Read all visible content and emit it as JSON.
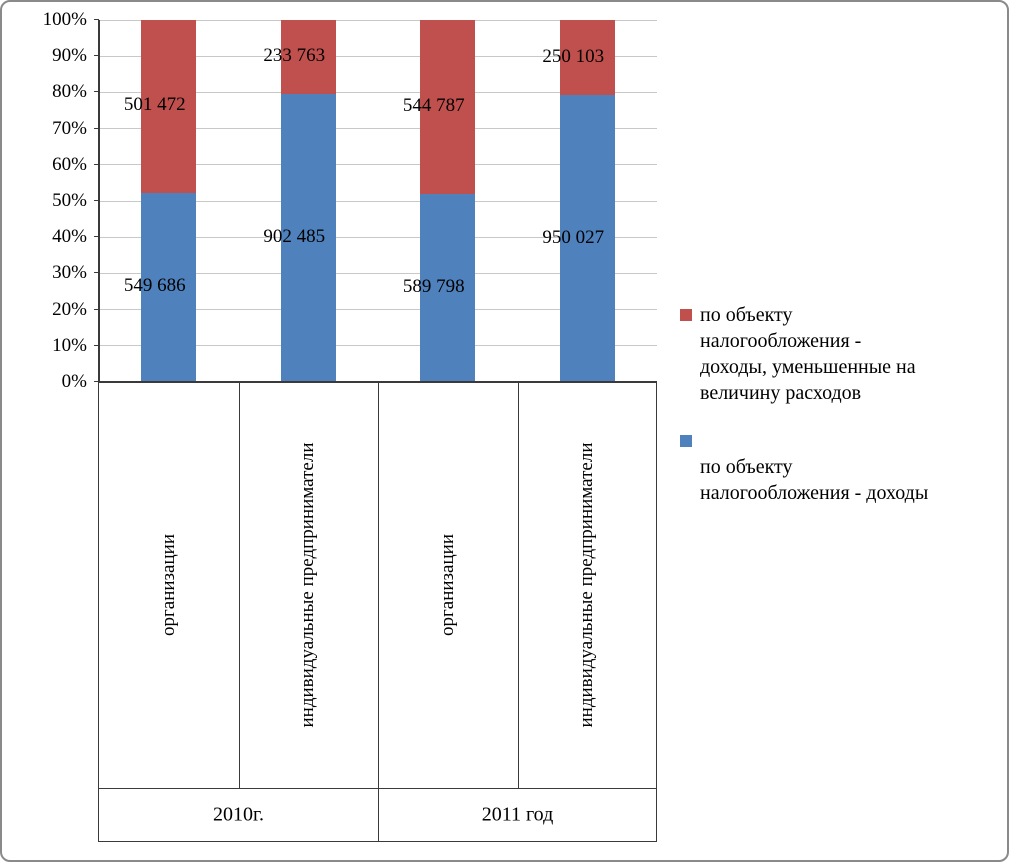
{
  "chart_data": {
    "type": "bar",
    "subtype": "stacked-100-percent",
    "title": "",
    "grid": true,
    "legend_position": "right",
    "groups": [
      {
        "label": "2010г.",
        "categories": [
          "организации",
          "индивидуальные предприниматели"
        ]
      },
      {
        "label": "2011 год",
        "categories": [
          "организации",
          "индивидуальные предприниматели"
        ]
      }
    ],
    "series": [
      {
        "name": "по объекту налогообложения - доходы",
        "color": "#4f81bd",
        "values": [
          549686,
          902485,
          589798,
          950027
        ],
        "labels": [
          "549 686",
          "902 485",
          "589 798",
          "950 027"
        ]
      },
      {
        "name": "по объекту налогообложения - доходы, уменьшенные на величину расходов",
        "color": "#c0504d",
        "values": [
          501472,
          233763,
          544787,
          250103
        ],
        "labels": [
          "501 472",
          "233 763",
          "544 787",
          "250 103"
        ]
      }
    ],
    "y_axis": {
      "min": 0,
      "max": 100,
      "step": 10,
      "ticks": [
        "0%",
        "10%",
        "20%",
        "30%",
        "40%",
        "50%",
        "60%",
        "70%",
        "80%",
        "90%",
        "100%"
      ]
    },
    "legend": [
      {
        "color": "#c0504d",
        "label": "по объекту\nналогообложения -\nдоходы, уменьшенные на\nвеличину расходов"
      },
      {
        "color": "#4f81bd",
        "label": "\nпо объекту\nналогообложения - доходы"
      }
    ]
  }
}
